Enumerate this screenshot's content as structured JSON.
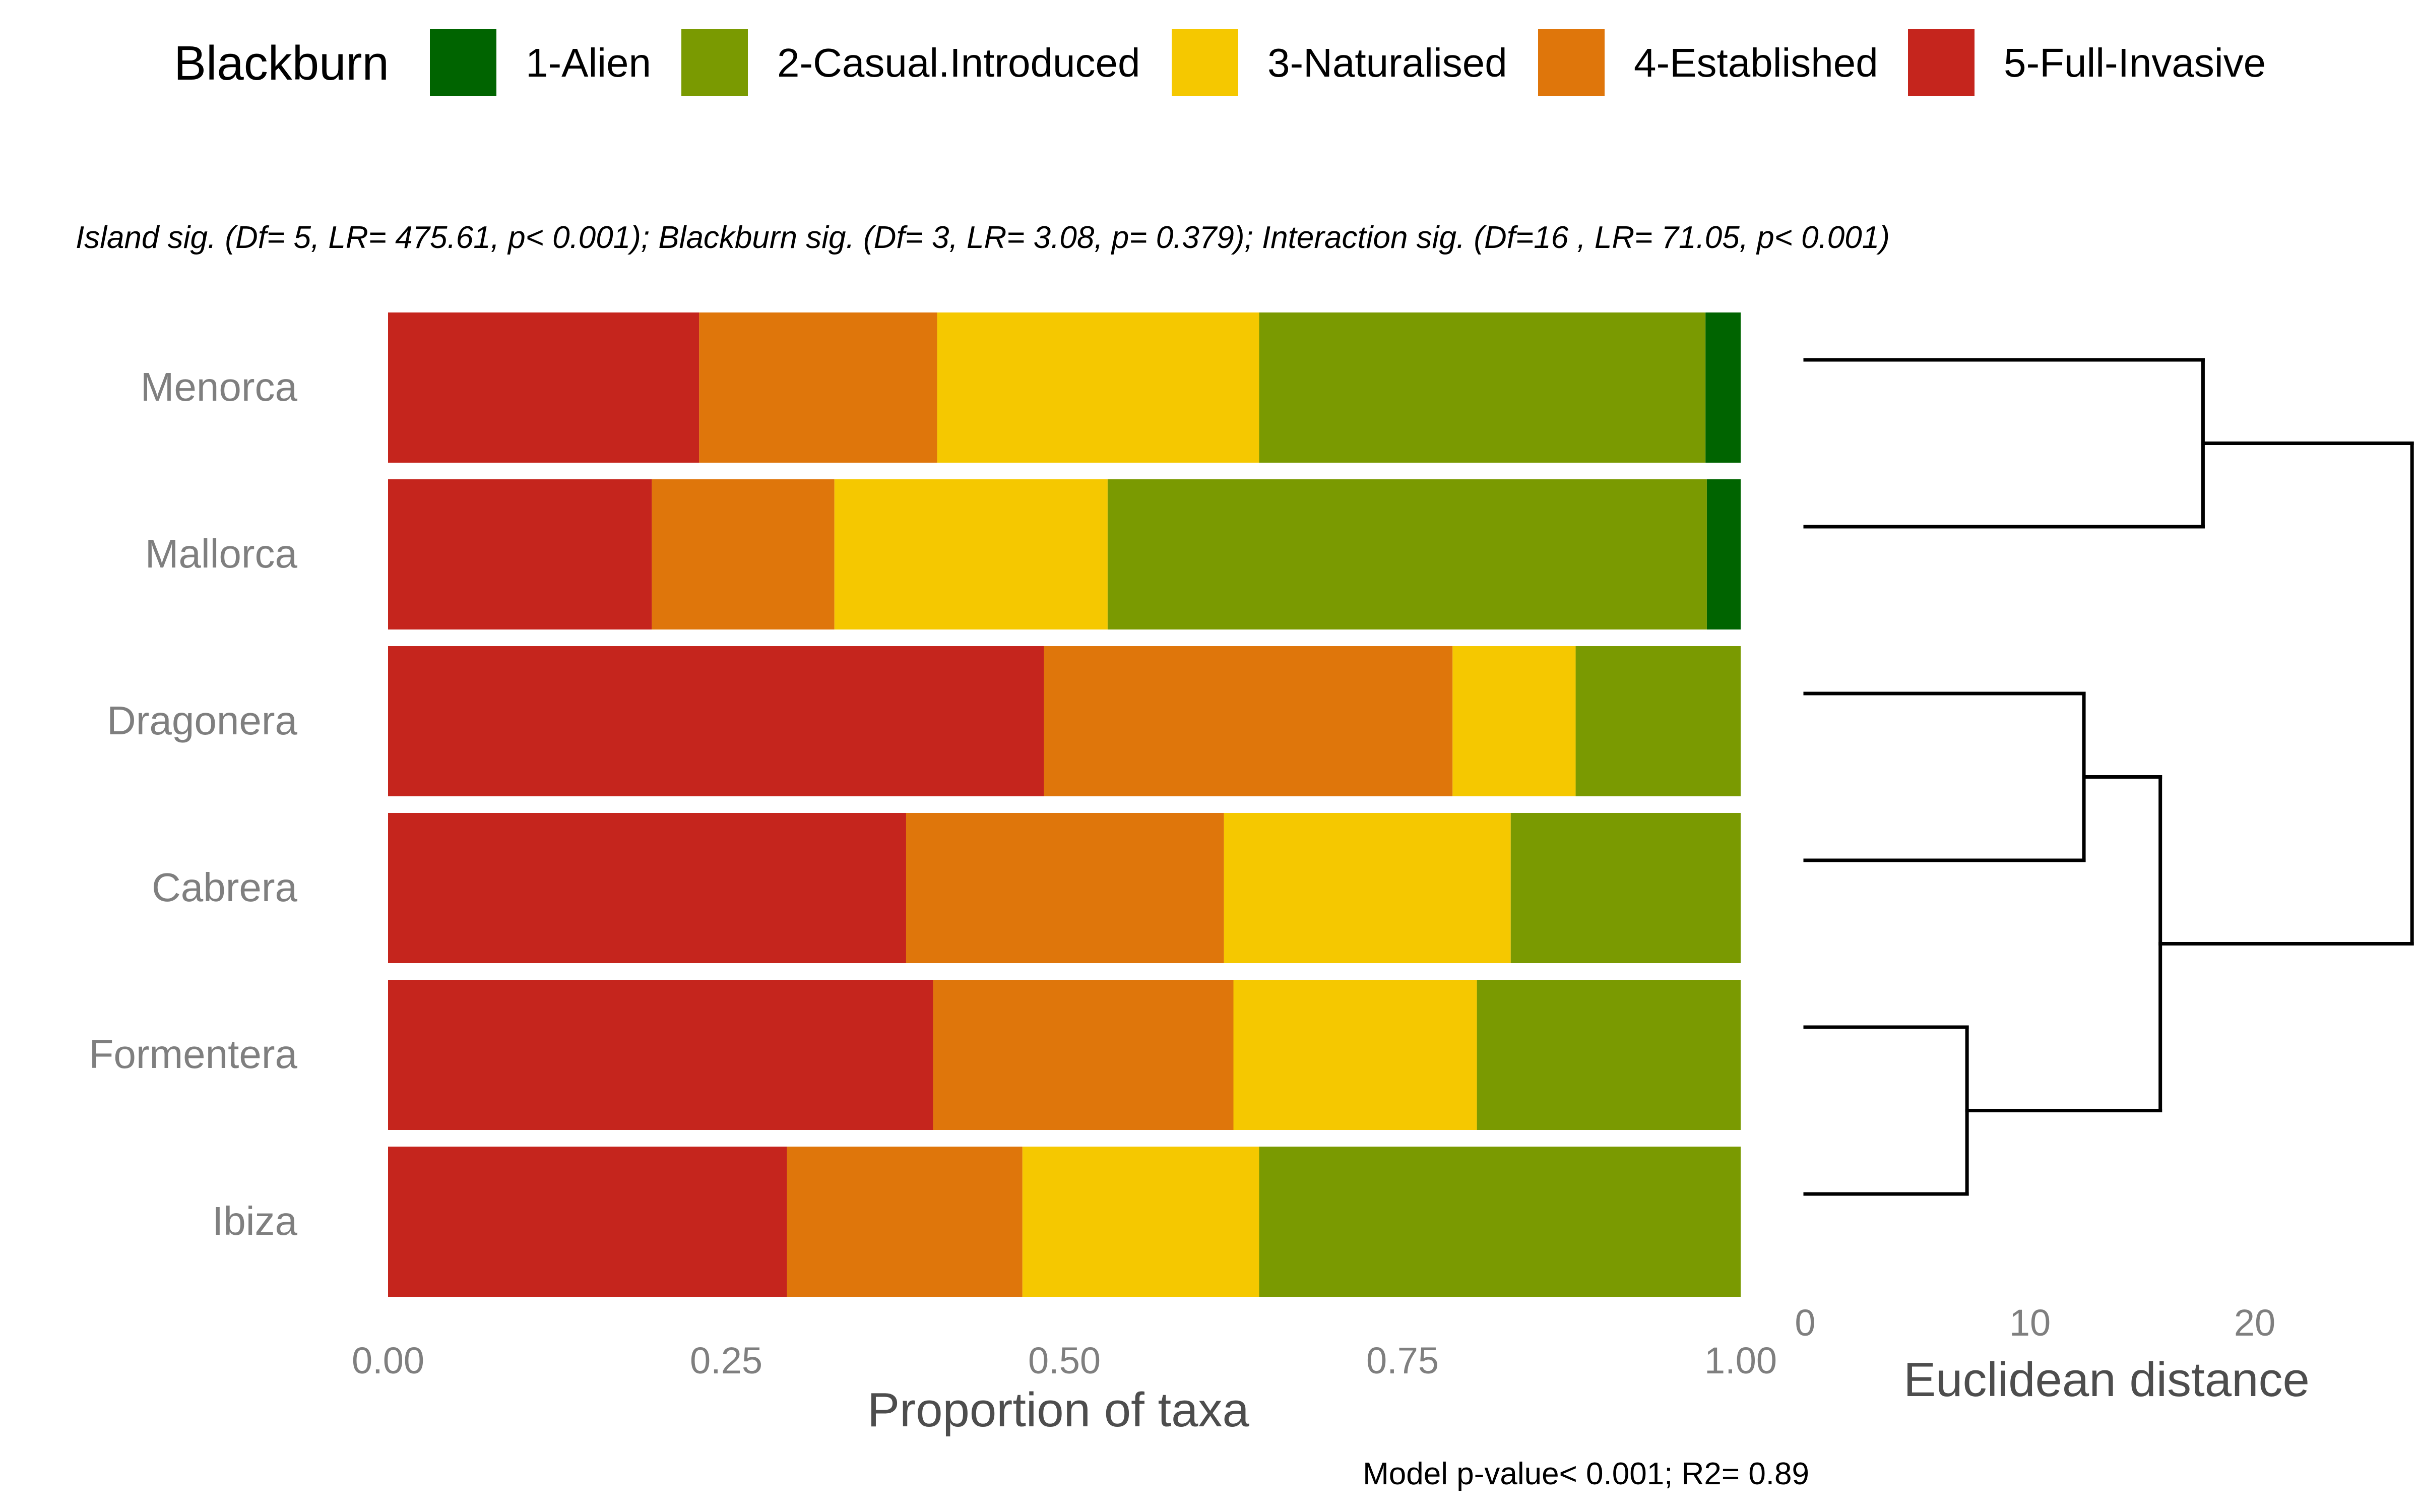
{
  "chart_data": {
    "type": "bar",
    "orientation": "horizontal",
    "stacked": true,
    "legend": {
      "title": "Blackburn",
      "placement": "top",
      "entries": [
        {
          "label": "1-Alien",
          "color": "#006400"
        },
        {
          "label": "2-Casual.Introduced",
          "color": "#7a9a01"
        },
        {
          "label": "3-Naturalised",
          "color": "#f5c800"
        },
        {
          "label": "4-Established",
          "color": "#df760b"
        },
        {
          "label": "5-Full-Invasive",
          "color": "#c5251d"
        }
      ]
    },
    "stats_line": "Island sig. (Df= 5, LR= 475.61, p< 0.001); Blackburn sig. (Df= 3, LR= 3.08, p= 0.379); Interaction sig. (Df=16 , LR= 71.05, p< 0.001)",
    "categories": [
      "Menorca",
      "Mallorca",
      "Dragonera",
      "Cabrera",
      "Formentera",
      "Ibiza"
    ],
    "series": [
      {
        "name": "5-Full-Invasive",
        "color": "#c5251d",
        "values": [
          0.23,
          0.195,
          0.485,
          0.383,
          0.403,
          0.295
        ]
      },
      {
        "name": "4-Established",
        "color": "#df760b",
        "values": [
          0.176,
          0.135,
          0.302,
          0.235,
          0.222,
          0.174
        ]
      },
      {
        "name": "3-Naturalised",
        "color": "#f5c800",
        "values": [
          0.238,
          0.202,
          0.091,
          0.212,
          0.18,
          0.175
        ]
      },
      {
        "name": "2-Casual.Introduced",
        "color": "#7a9a01",
        "values": [
          0.33,
          0.443,
          0.122,
          0.17,
          0.195,
          0.356
        ]
      },
      {
        "name": "1-Alien",
        "color": "#006400",
        "values": [
          0.026,
          0.025,
          0,
          0,
          0,
          0
        ]
      }
    ],
    "xlabel": "Proportion of taxa",
    "xlim": [
      0,
      1
    ],
    "x_ticks": [
      "0.00",
      "0.25",
      "0.50",
      "0.75",
      "1.00"
    ],
    "grid": false,
    "dendrogram": {
      "xlabel": "Euclidean distance",
      "x_ticks": [
        0,
        10,
        20
      ],
      "merges": [
        {
          "items": [
            "Menorca",
            "Mallorca"
          ],
          "height": 17.7
        },
        {
          "items": [
            "Dragonera",
            "Cabrera"
          ],
          "height": 12.4
        },
        {
          "items": [
            "Formentera",
            "Ibiza"
          ],
          "height": 7.2
        },
        {
          "items": [
            "Dragonera",
            "Cabrera",
            "Formentera",
            "Ibiza"
          ],
          "height": 15.8
        },
        {
          "items": [
            "Menorca",
            "Mallorca",
            "Dragonera",
            "Cabrera",
            "Formentera",
            "Ibiza"
          ],
          "height": 27.0
        }
      ]
    },
    "footnote": "Model p-value< 0.001; R2= 0.89"
  }
}
